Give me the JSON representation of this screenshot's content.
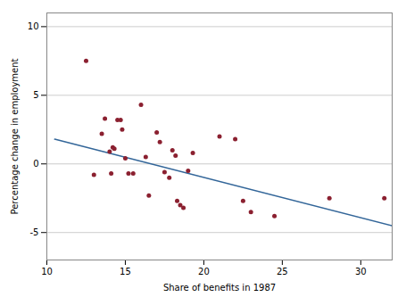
{
  "chart_data": {
    "type": "scatter",
    "xlabel": "Share of benefits in 1987",
    "ylabel": "Percentage change in employment",
    "series": [
      {
        "type": "scatter",
        "color": "#8B2030",
        "x": [
          12.5,
          13.0,
          13.5,
          13.7,
          14.0,
          14.1,
          14.2,
          14.3,
          14.5,
          14.7,
          14.8,
          15.0,
          15.2,
          15.5,
          16.0,
          16.3,
          16.5,
          17.0,
          17.2,
          17.5,
          17.8,
          18.0,
          18.2,
          18.3,
          18.5,
          18.7,
          19.0,
          19.3,
          21.0,
          22.0,
          22.5,
          23.0,
          24.5,
          28.0,
          31.5
        ],
        "values": [
          7.5,
          -0.8,
          2.2,
          3.3,
          0.9,
          -0.7,
          1.2,
          1.1,
          3.2,
          3.2,
          2.5,
          0.4,
          -0.7,
          -0.7,
          4.3,
          0.5,
          -2.3,
          2.3,
          1.6,
          -0.6,
          -1.0,
          1.0,
          0.6,
          -2.7,
          -3.0,
          -3.2,
          -0.5,
          0.8,
          2.0,
          1.8,
          -2.7,
          -3.5,
          -3.8,
          -2.5,
          -2.5
        ]
      },
      {
        "type": "line",
        "color": "#336699",
        "x": [
          10.5,
          32.0
        ],
        "values": [
          1.8,
          -4.5
        ]
      }
    ],
    "xlim": [
      10,
      32
    ],
    "ylim": [
      -7,
      11
    ],
    "xticks": [
      10,
      15,
      20,
      25,
      30
    ],
    "yticks": [
      -5,
      0,
      5,
      10
    ],
    "grid": "y"
  }
}
